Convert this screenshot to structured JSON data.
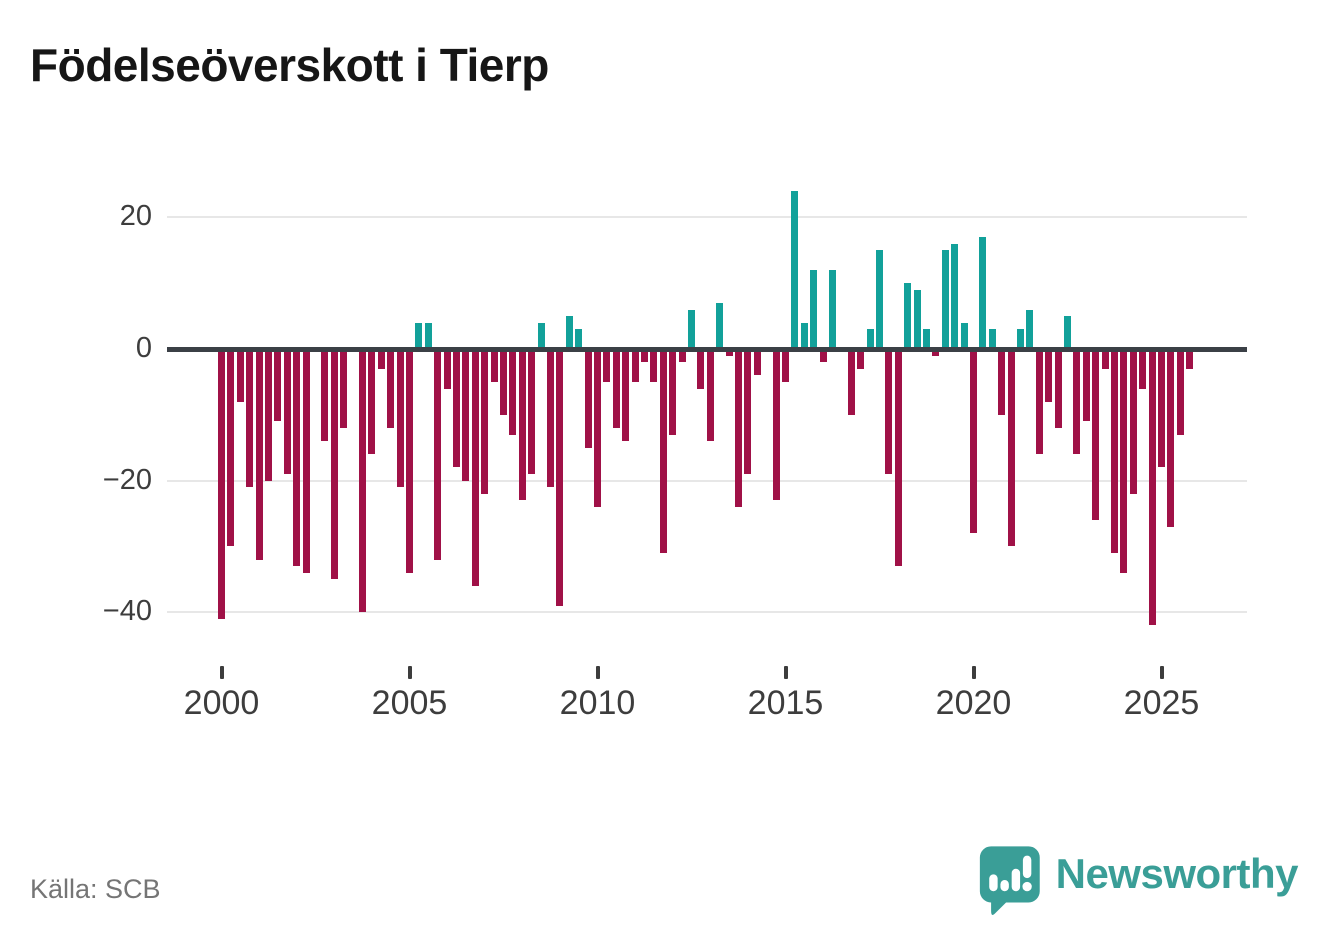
{
  "title": "Födelseöverskott i Tierp",
  "source": {
    "text": "Källa: SCB"
  },
  "logo": {
    "text": "Newsworthy"
  },
  "colors": {
    "positive": "#12a19a",
    "negative": "#a01147",
    "axis": "#3b4046",
    "grid": "#e7e7e7",
    "title_text": "#161616",
    "tick_label": "#3d3d3d",
    "source_text": "#757575",
    "logo_teal": "#3a9e97"
  },
  "chart_data": {
    "type": "bar",
    "title": "Födelseöverskott i Tierp",
    "x_unit": "quarter",
    "x_start": "2000-Q1",
    "x_end": "2025-Q4",
    "x_tick_years": [
      "2000",
      "2005",
      "2010",
      "2015",
      "2020",
      "2025"
    ],
    "y_ticks": [
      {
        "value": 20,
        "label": "20"
      },
      {
        "value": 0,
        "label": "0"
      },
      {
        "value": -20,
        "label": "−20"
      },
      {
        "value": -40,
        "label": "−40"
      }
    ],
    "ylim": [
      -46,
      27
    ],
    "grid": "horizontal",
    "legend": "none",
    "series": [
      {
        "name": "Födelseöverskott",
        "values": [
          -41,
          -30,
          -8,
          -21,
          -32,
          -20,
          -11,
          -19,
          -33,
          -34,
          0,
          -14,
          -35,
          -12,
          0,
          -40,
          -16,
          -3,
          -12,
          -21,
          -34,
          4,
          4,
          -32,
          -6,
          -18,
          -20,
          -36,
          -22,
          -5,
          -10,
          -13,
          -23,
          -19,
          4,
          -21,
          -39,
          5,
          3,
          -15,
          -24,
          -5,
          -12,
          -14,
          -5,
          -2,
          -5,
          -31,
          -13,
          -2,
          6,
          -6,
          -14,
          7,
          -1,
          -24,
          -19,
          -4,
          0,
          -23,
          -5,
          24,
          4,
          12,
          -2,
          12,
          0,
          -10,
          -3,
          3,
          15,
          -19,
          -33,
          10,
          9,
          3,
          -1,
          15,
          16,
          4,
          -28,
          17,
          3,
          -10,
          -30,
          3,
          6,
          -16,
          -8,
          -12,
          5,
          -16,
          -11,
          -26,
          -3,
          -31,
          -34,
          -22,
          -6,
          -42,
          -18,
          -27,
          -13,
          -3
        ]
      }
    ]
  }
}
